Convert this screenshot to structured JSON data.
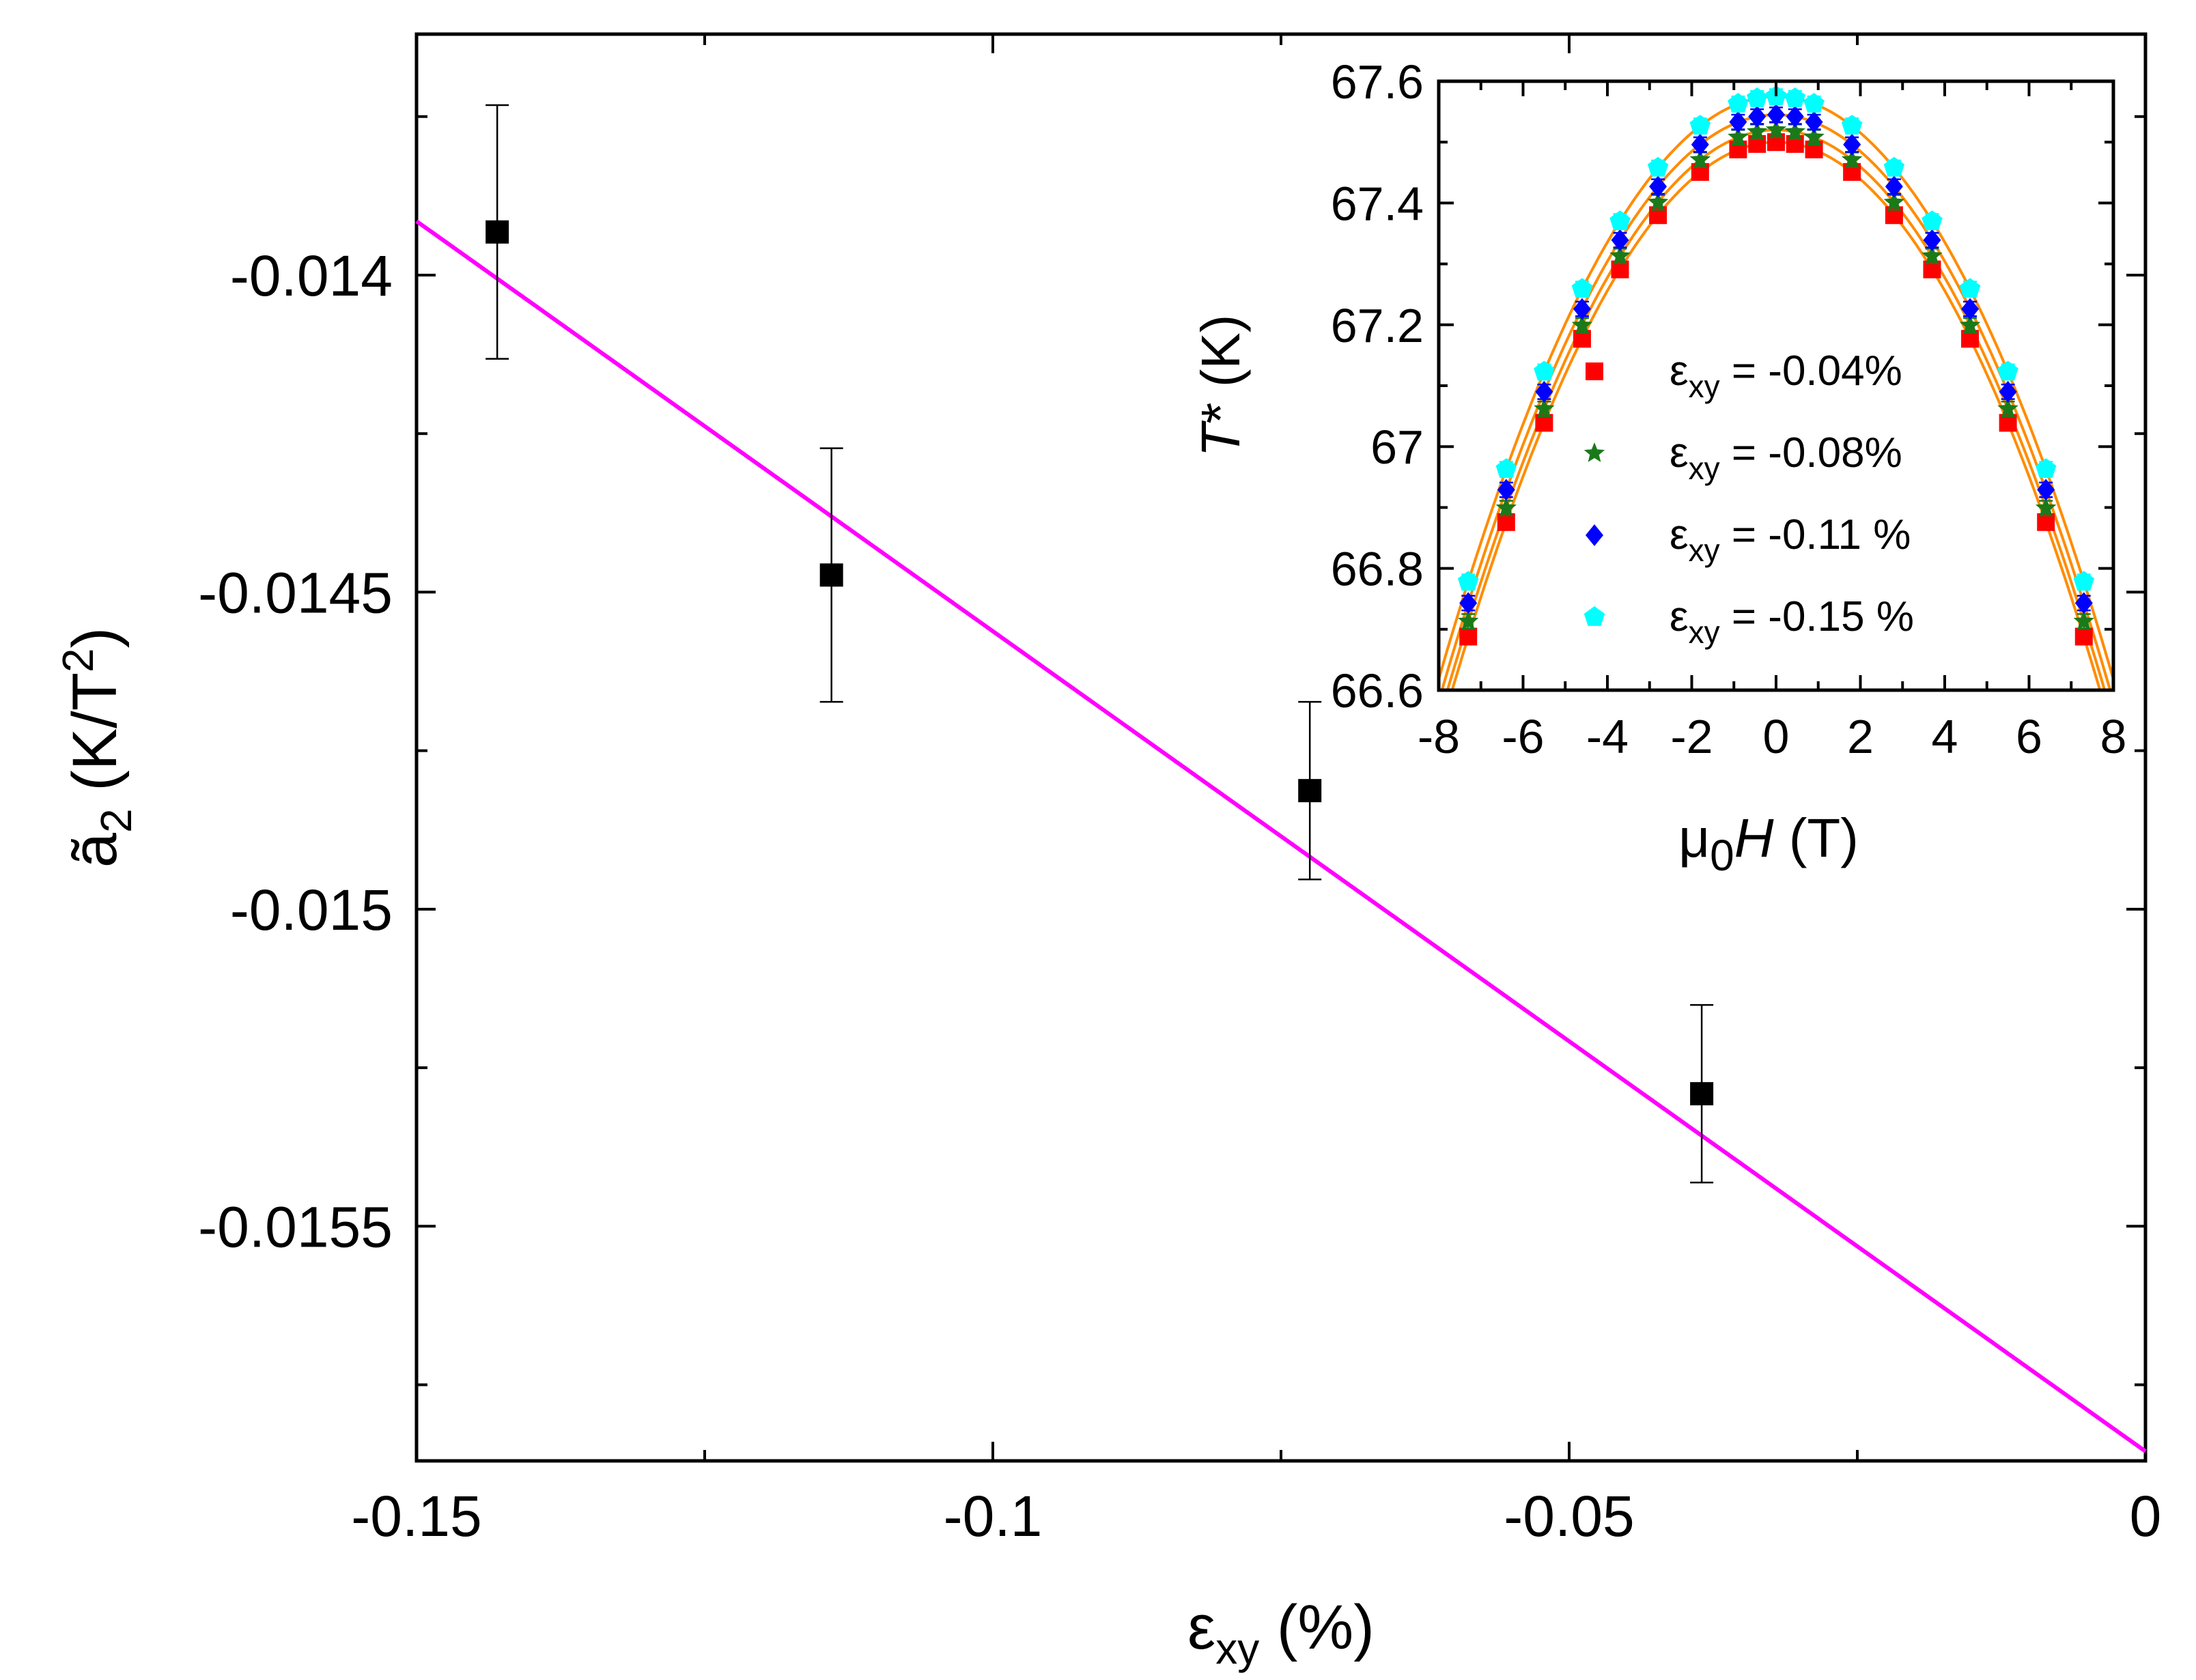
{
  "chart_data": [
    {
      "type": "scatter",
      "title": "",
      "xlabel": "εxy (%)",
      "ylabel": "ã2 (K/T2)",
      "xlim": [
        -0.15,
        0
      ],
      "ylim": [
        -0.01587,
        -0.01362
      ],
      "x_ticks": [
        -0.15,
        -0.1,
        -0.05,
        0
      ],
      "x_tick_labels": [
        "-0.15",
        "-0.1",
        "-0.05",
        "0"
      ],
      "y_ticks": [
        -0.014,
        -0.0145,
        -0.015,
        -0.0155
      ],
      "y_tick_labels": [
        "-0.014",
        "-0.0145",
        "-0.015",
        "-0.0155"
      ],
      "grid": false,
      "points": [
        {
          "x": -0.143,
          "y": -0.013932,
          "yerr": 0.0002
        },
        {
          "x": -0.114,
          "y": -0.014473,
          "yerr": 0.0002
        },
        {
          "x": -0.0725,
          "y": -0.014813,
          "yerr": 0.00014
        },
        {
          "x": -0.0385,
          "y": -0.015291,
          "yerr": 0.00014
        }
      ],
      "fit_line": {
        "x": [
          -0.15,
          0
        ],
        "y": [
          -0.013915,
          -0.015855
        ],
        "color": "#ff00ff"
      },
      "marker_color": "#000000"
    },
    {
      "type": "scatter",
      "title": "",
      "xlabel": "μ0H (T)",
      "ylabel": "T* (K)",
      "xlim": [
        -8,
        8
      ],
      "ylim": [
        66.6,
        67.6
      ],
      "x_ticks": [
        -8,
        -6,
        -4,
        -2,
        0,
        2,
        4,
        6,
        8
      ],
      "x_tick_labels": [
        "-8",
        "-6",
        "-4",
        "-2",
        "0",
        "2",
        "4",
        "6",
        "8"
      ],
      "y_ticks": [
        66.6,
        66.8,
        67,
        67.2,
        67.4,
        67.6
      ],
      "y_tick_labels": [
        "66.6",
        "66.8",
        "67",
        "67.2",
        "67.4",
        "67.6"
      ],
      "grid": false,
      "legend_position": "center-right",
      "x": [
        -7.3,
        -6.4,
        -5.5,
        -4.6,
        -3.7,
        -2.8,
        -1.8,
        -0.9,
        -0.45,
        0,
        0.45,
        0.9,
        1.8,
        2.8,
        3.7,
        4.6,
        5.5,
        6.4,
        7.3
      ],
      "series": [
        {
          "name": "εxy = -0.04%",
          "marker": "square",
          "color": "#ff0000",
          "peak": 67.5,
          "curvature": 0.01525,
          "y": [
            66.688,
            66.876,
            67.039,
            67.177,
            67.291,
            67.38,
            67.451,
            67.488,
            67.497,
            67.5,
            67.497,
            67.488,
            67.451,
            67.38,
            67.291,
            67.177,
            67.039,
            66.876,
            66.688
          ]
        },
        {
          "name": "εxy = -0.08%",
          "marker": "star",
          "color": "#1a7a1a",
          "peak": 67.52,
          "curvature": 0.01515,
          "y": [
            66.713,
            66.899,
            67.062,
            67.199,
            67.313,
            67.401,
            67.471,
            67.508,
            67.517,
            67.52,
            67.517,
            67.508,
            67.471,
            67.401,
            67.313,
            67.199,
            67.062,
            66.899,
            66.713
          ]
        },
        {
          "name": "εxy = -0.11 %",
          "marker": "diamond",
          "color": "#0000ff",
          "peak": 67.545,
          "curvature": 0.01505,
          "y": [
            66.743,
            66.929,
            67.09,
            67.226,
            67.339,
            67.427,
            67.496,
            67.533,
            67.542,
            67.545,
            67.542,
            67.533,
            67.496,
            67.427,
            67.339,
            67.226,
            67.09,
            66.929,
            66.743
          ]
        },
        {
          "name": "εxy = -0.15 %",
          "marker": "pentagon",
          "color": "#00ffff",
          "peak": 67.575,
          "curvature": 0.01495,
          "y": [
            66.778,
            66.963,
            67.123,
            67.259,
            67.37,
            67.458,
            67.527,
            67.563,
            67.572,
            67.575,
            67.572,
            67.563,
            67.527,
            67.458,
            67.37,
            67.259,
            67.123,
            66.963,
            66.778
          ]
        }
      ],
      "fit_color": "#ff8c00",
      "yerr": 0.012
    }
  ]
}
